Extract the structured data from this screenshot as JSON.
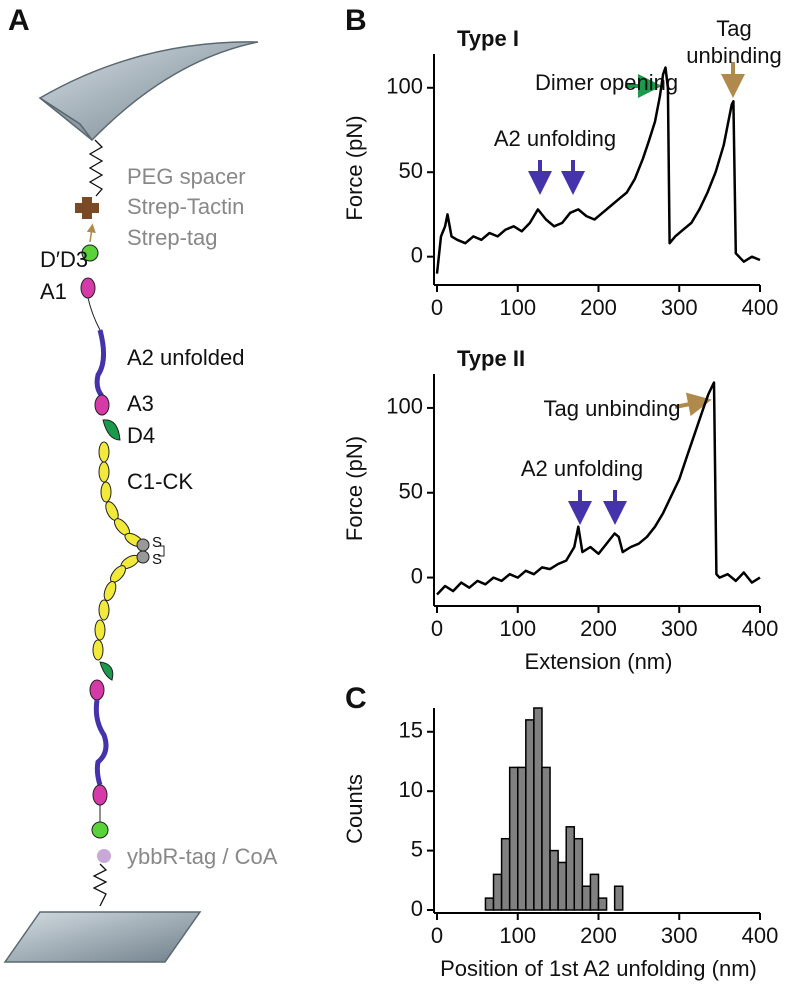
{
  "panel_labels": [
    "A",
    "B",
    "C"
  ],
  "diagram": {
    "labels": [
      "PEG spacer",
      "Strep-Tactin",
      "Strep-tag",
      "D′D3",
      "A1",
      "A2 unfolded",
      "A3",
      "D4",
      "C1-CK",
      "S",
      "S",
      "ybbR-tag / CoA"
    ]
  },
  "chart_data": [
    {
      "type": "line",
      "title": "Type I",
      "ylabel": "Force (pN)",
      "x": [
        0,
        5,
        10,
        13,
        18,
        25,
        35,
        45,
        55,
        65,
        75,
        85,
        95,
        105,
        115,
        125,
        135,
        145,
        155,
        165,
        175,
        185,
        195,
        205,
        215,
        225,
        235,
        245,
        255,
        262,
        270,
        276,
        280,
        283,
        286,
        288,
        295,
        305,
        315,
        325,
        335,
        345,
        355,
        360,
        365,
        367,
        370,
        380,
        390,
        400
      ],
      "values": [
        -10,
        12,
        18,
        25,
        12,
        10,
        8,
        12,
        10,
        14,
        12,
        16,
        18,
        15,
        20,
        28,
        22,
        18,
        20,
        26,
        28,
        24,
        22,
        26,
        30,
        34,
        38,
        46,
        58,
        68,
        80,
        95,
        108,
        112,
        100,
        8,
        12,
        16,
        20,
        28,
        38,
        50,
        66,
        78,
        90,
        92,
        2,
        -3,
        0,
        -2
      ],
      "color": "#000000",
      "xlim": [
        0,
        400
      ],
      "ylim": [
        -15,
        120
      ],
      "xticks": [
        0,
        100,
        200,
        300,
        400
      ],
      "yticks": [
        0,
        50,
        100
      ],
      "annotations": [
        "Dimer opening",
        "A2 unfolding",
        "Tag unbinding"
      ]
    },
    {
      "type": "line",
      "title": "Type II",
      "ylabel": "Force (pN)",
      "xlabel": "Extension (nm)",
      "x": [
        0,
        10,
        20,
        30,
        40,
        50,
        60,
        70,
        80,
        90,
        100,
        110,
        120,
        130,
        140,
        150,
        160,
        170,
        175,
        180,
        190,
        200,
        210,
        220,
        225,
        230,
        240,
        250,
        260,
        270,
        280,
        290,
        300,
        310,
        320,
        330,
        336,
        340,
        343,
        346,
        350,
        360,
        370,
        380,
        390,
        400
      ],
      "values": [
        -10,
        -5,
        -8,
        -3,
        -6,
        -2,
        -4,
        0,
        -2,
        2,
        0,
        4,
        2,
        6,
        5,
        8,
        10,
        18,
        30,
        15,
        18,
        14,
        20,
        26,
        24,
        15,
        18,
        20,
        24,
        30,
        38,
        48,
        58,
        72,
        86,
        100,
        108,
        112,
        115,
        2,
        0,
        2,
        -2,
        3,
        -3,
        0
      ],
      "color": "#000000",
      "xlim": [
        0,
        400
      ],
      "ylim": [
        -15,
        120
      ],
      "xticks": [
        0,
        100,
        200,
        300,
        400
      ],
      "yticks": [
        0,
        50,
        100
      ],
      "annotations": [
        "Tag unbinding",
        "A2 unfolding"
      ]
    },
    {
      "type": "histogram",
      "ylabel": "Counts",
      "xlabel": "Position of 1st A2 unfolding (nm)",
      "bins": [
        60,
        70,
        80,
        90,
        100,
        110,
        120,
        130,
        140,
        150,
        160,
        170,
        180,
        190,
        200,
        210,
        220,
        230
      ],
      "values": [
        1,
        3,
        6,
        12,
        12,
        16,
        17,
        12,
        5,
        4,
        7,
        6,
        2,
        3,
        1,
        0,
        2
      ],
      "color": "#808080",
      "xlim": [
        0,
        400
      ],
      "ylim": [
        0,
        17
      ],
      "xticks": [
        0,
        100,
        200,
        300,
        400
      ],
      "yticks": [
        0,
        5,
        10,
        15
      ]
    }
  ]
}
